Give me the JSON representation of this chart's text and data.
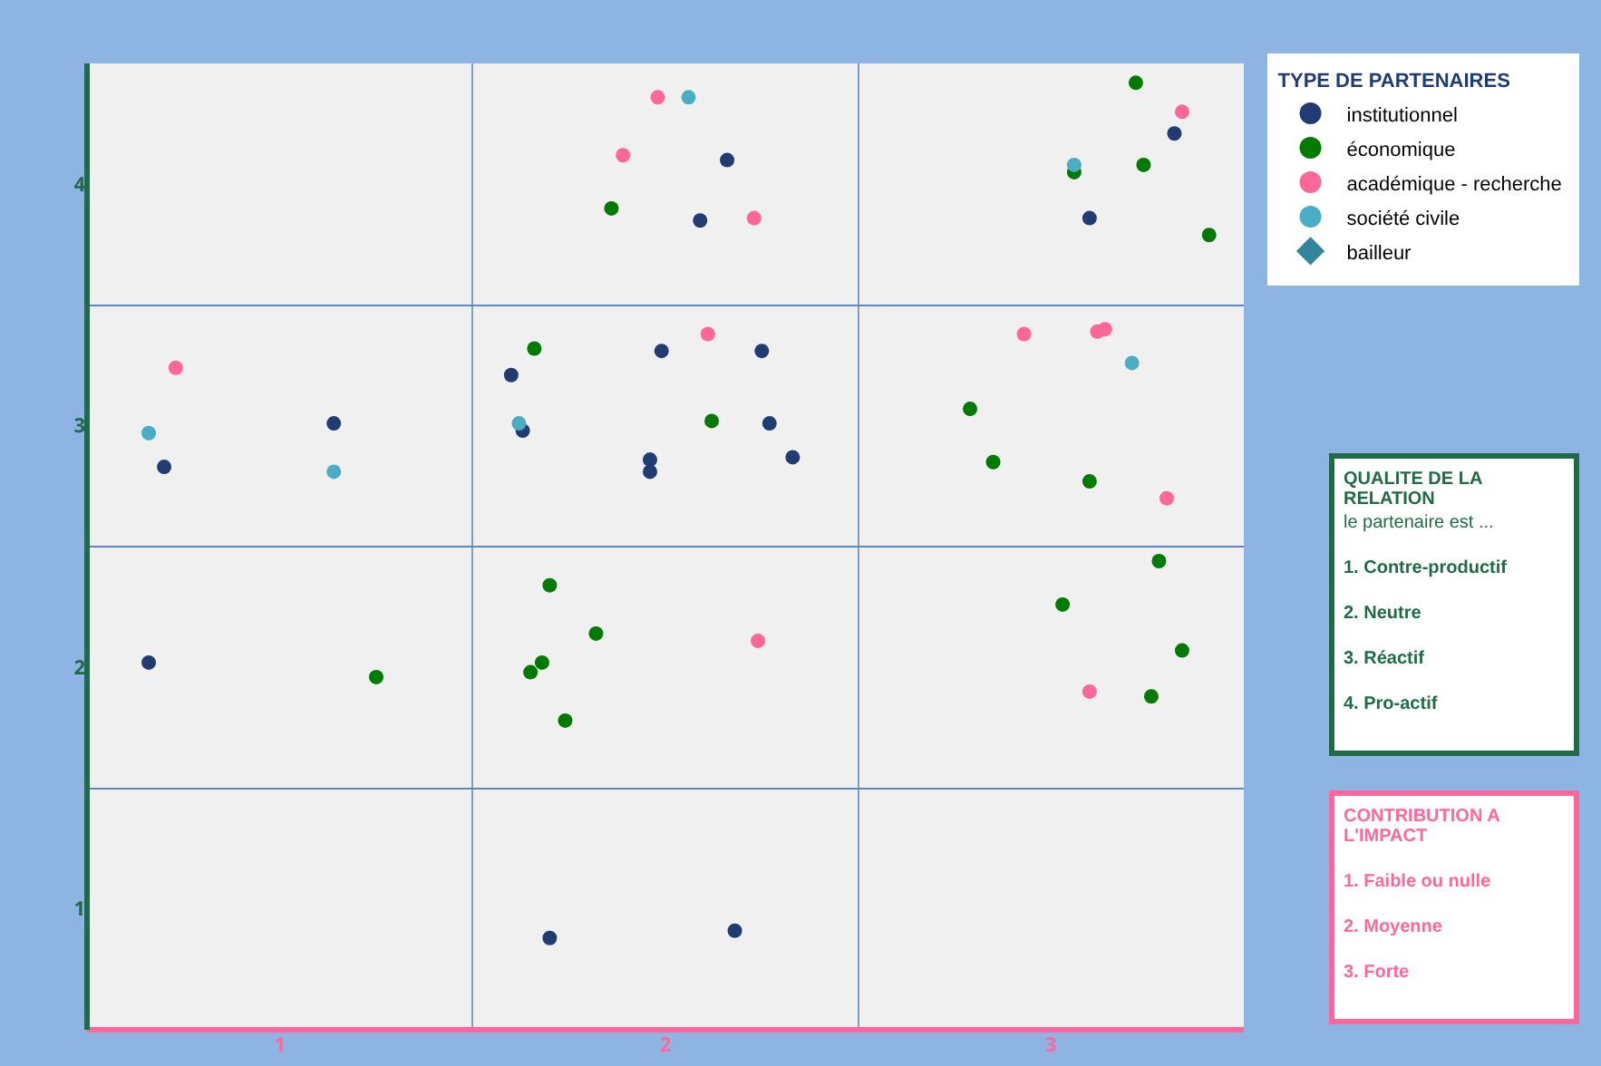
{
  "chart_data": {
    "type": "scatter",
    "legend_title": "TYPE DE PARTENAIRES",
    "legend": "right",
    "grid": true,
    "marker": "circle",
    "xlim": [
      0.5,
      3.5
    ],
    "ylim": [
      0.5,
      4.5
    ],
    "xticks": [
      {
        "value": 1.5,
        "label": null
      },
      1,
      2,
      {
        "value": 2.5,
        "label": null
      },
      3
    ],
    "yticks": [
      {
        "value": 1.5,
        "label": null
      },
      1,
      2,
      {
        "value": 2.5,
        "label": null
      },
      3,
      {
        "value": 3.5,
        "label": null
      },
      4
    ],
    "series": [
      {
        "name": "institutionnel",
        "color": "#1f3d73",
        "x": [
          0.7,
          1.14,
          1.6,
          1.63,
          1.99,
          1.96,
          1.96,
          2.25,
          2.27,
          2.33,
          2.16,
          2.09,
          3.1,
          3.32,
          0.66,
          1.7,
          2.18
        ],
        "values": [
          2.83,
          3.01,
          3.21,
          2.98,
          3.31,
          2.86,
          2.81,
          3.31,
          3.01,
          2.87,
          4.1,
          3.85,
          3.86,
          4.21,
          2.02,
          0.88,
          0.91
        ]
      },
      {
        "name": "économique",
        "color": "#007a00",
        "x": [
          1.86,
          1.66,
          2.12,
          3.22,
          3.06,
          3.24,
          3.41,
          2.79,
          2.85,
          3.1,
          1.25,
          1.7,
          1.82,
          1.68,
          1.65,
          1.74,
          3.28,
          3.03,
          3.34,
          3.26
        ],
        "values": [
          3.9,
          3.32,
          3.02,
          4.42,
          4.05,
          4.08,
          3.79,
          3.07,
          2.85,
          2.77,
          1.96,
          2.34,
          2.14,
          2.02,
          1.98,
          1.78,
          2.44,
          2.26,
          2.07,
          1.88
        ]
      },
      {
        "name": "académique - recherche",
        "color": "#ff6699",
        "x": [
          1.98,
          1.89,
          2.23,
          3.34,
          0.73,
          2.11,
          2.93,
          3.12,
          3.14,
          3.3,
          2.24,
          3.1
        ],
        "values": [
          4.36,
          4.12,
          3.86,
          4.3,
          3.24,
          3.38,
          3.38,
          3.39,
          3.4,
          2.7,
          2.11,
          1.9
        ]
      },
      {
        "name": "société civile",
        "color": "#4bacc6",
        "x": [
          2.06,
          0.66,
          1.14,
          1.62,
          3.06,
          3.21
        ],
        "values": [
          4.36,
          2.97,
          2.81,
          3.01,
          4.08,
          3.26
        ]
      },
      {
        "name": "bailleur",
        "color": "#31859c",
        "marker": "diamond"
      }
    ],
    "annotations": [
      "QUALITE DE LA RELATION",
      "le partenaire est  ...",
      "1. Contre-productif",
      "2. Neutre",
      "3. Réactif",
      "4. Pro-actif",
      "CONTRIBUTION A L'IMPACT",
      "1. Faible ou nulle",
      "2. Moyenne",
      "3. Forte"
    ]
  }
}
